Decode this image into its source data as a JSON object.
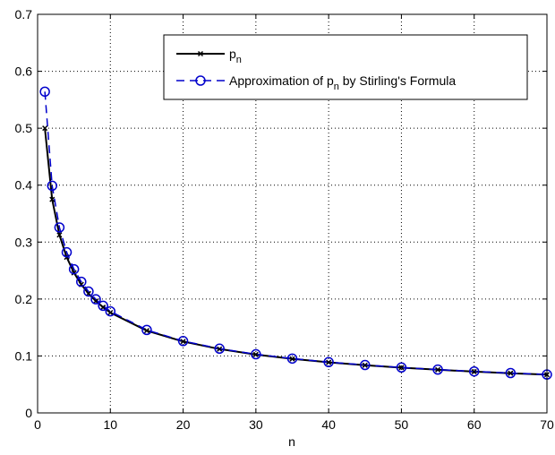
{
  "chart_data": {
    "type": "line",
    "xlabel": "n",
    "ylabel": "",
    "xlim": [
      0,
      70
    ],
    "ylim": [
      0,
      0.7
    ],
    "x_ticks": [
      "0",
      "10",
      "20",
      "30",
      "40",
      "50",
      "60",
      "70"
    ],
    "y_ticks": [
      "0",
      "0.1",
      "0.2",
      "0.3",
      "0.4",
      "0.5",
      "0.6",
      "0.7"
    ],
    "grid": true,
    "legend_position": "top-right",
    "series": [
      {
        "name": "p",
        "name_subscript": "n",
        "color": "#000000",
        "line_style": "solid",
        "marker": "x",
        "x": [
          1,
          2,
          3,
          4,
          5,
          6,
          7,
          8,
          9,
          10,
          15,
          20,
          25,
          30,
          35,
          40,
          45,
          50,
          55,
          60,
          65,
          70
        ],
        "y": [
          0.5,
          0.375,
          0.3125,
          0.2734,
          0.2461,
          0.2256,
          0.2095,
          0.1964,
          0.1855,
          0.1762,
          0.1445,
          0.1254,
          0.1122,
          0.1025,
          0.0949,
          0.0888,
          0.0837,
          0.0795,
          0.0758,
          0.0725,
          0.0697,
          0.0672
        ]
      },
      {
        "name_prefix": "Approximation of p",
        "name_subscript": "n",
        "name_suffix": " by Stirling's Formula",
        "color": "#0000cc",
        "line_style": "dashed",
        "marker": "circle",
        "x": [
          1,
          2,
          3,
          4,
          5,
          6,
          7,
          8,
          9,
          10,
          15,
          20,
          25,
          30,
          35,
          40,
          45,
          50,
          55,
          60,
          65,
          70
        ],
        "y": [
          0.5642,
          0.3989,
          0.3257,
          0.2821,
          0.2523,
          0.2303,
          0.2132,
          0.1995,
          0.1881,
          0.1784,
          0.1457,
          0.1262,
          0.1128,
          0.103,
          0.0954,
          0.0892,
          0.0841,
          0.0798,
          0.0761,
          0.0728,
          0.07,
          0.0674
        ]
      }
    ]
  }
}
